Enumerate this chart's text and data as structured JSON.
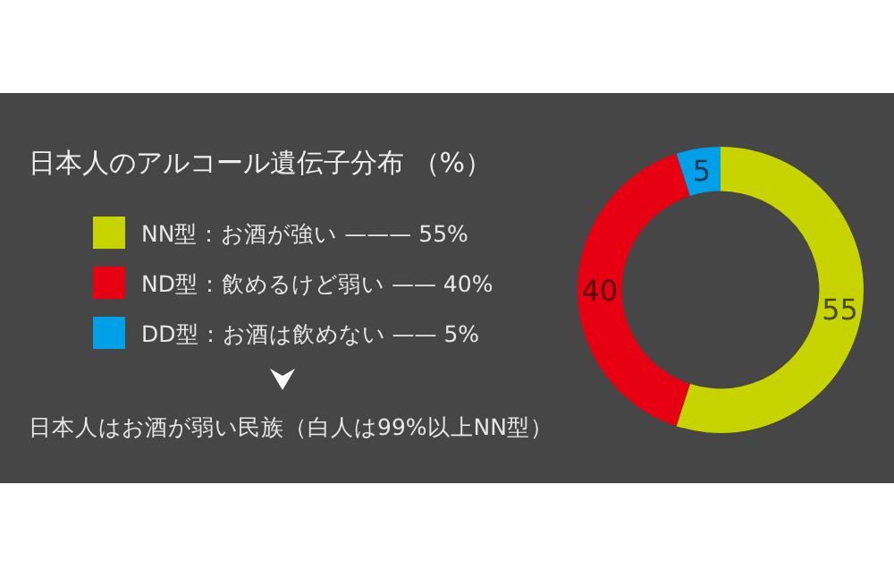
{
  "chart_data": {
    "type": "donut",
    "title": "日本人のアルコール遺伝子分布 （%）",
    "categories": [
      "NN型：お酒が強い ——— 55%",
      "ND型：飲めるけど弱い —— 40%",
      "DD型：お酒は飲めない —— 5%"
    ],
    "values": [
      55,
      40,
      5
    ],
    "colors": [
      "#c8d400",
      "#e60012",
      "#00a0e9"
    ],
    "data_labels": true,
    "legend": "left",
    "annotations": [
      "日本人はお酒が弱い民族（白人は99%以上NN型）"
    ]
  }
}
